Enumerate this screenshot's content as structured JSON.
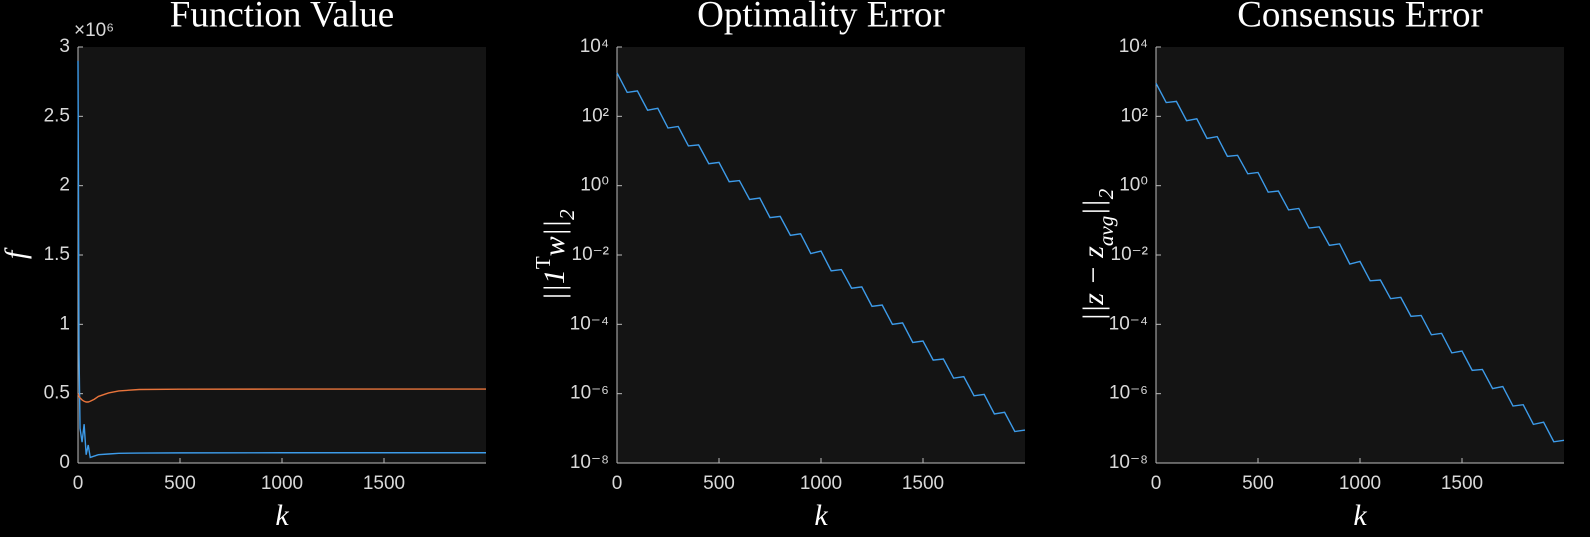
{
  "chart_data": [
    {
      "type": "line",
      "title": "Function Value",
      "xlabel": "k",
      "ylabel": [
        {
          "text": "f"
        }
      ],
      "y_offset_label": "×10⁶",
      "xlim": [
        0,
        2000
      ],
      "xticks": [
        0,
        500,
        1000,
        1500
      ],
      "ylim": [
        0,
        3000000
      ],
      "yticks": [
        {
          "value": 0,
          "label": "0"
        },
        {
          "value": 500000,
          "label": "0.5"
        },
        {
          "value": 1000000,
          "label": "1"
        },
        {
          "value": 1500000,
          "label": "1.5"
        },
        {
          "value": 2000000,
          "label": "2"
        },
        {
          "value": 2500000,
          "label": "2.5"
        },
        {
          "value": 3000000,
          "label": "3"
        }
      ],
      "log_y": false,
      "x": [
        0,
        5,
        10,
        20,
        30,
        40,
        50,
        60,
        80,
        100,
        150,
        200,
        300,
        500,
        1000,
        1500,
        2000
      ],
      "series": [
        {
          "color": "#3d9be9",
          "values": [
            2900000,
            800000,
            250000,
            150000,
            280000,
            60000,
            130000,
            40000,
            50000,
            60000,
            65000,
            70000,
            72000,
            73000,
            74000,
            74000,
            74000
          ]
        },
        {
          "color": "#e8743b",
          "values": [
            500000,
            480000,
            470000,
            455000,
            445000,
            440000,
            440000,
            445000,
            460000,
            480000,
            505000,
            520000,
            530000,
            532000,
            533000,
            533000,
            533000
          ]
        }
      ]
    },
    {
      "type": "line",
      "title": "Optimality Error",
      "xlabel": "k",
      "ylabel": [
        {
          "text": "||1"
        },
        {
          "text": "T",
          "sup": true
        },
        {
          "text": "w||"
        },
        {
          "text": "2",
          "sub": true
        }
      ],
      "xlim": [
        0,
        2000
      ],
      "xticks": [
        0,
        500,
        1000,
        1500
      ],
      "ylim": [
        1e-08,
        10000.0
      ],
      "yticks": [
        {
          "value": 1e-08,
          "label": "10⁻⁸"
        },
        {
          "value": 1e-06,
          "label": "10⁻⁶"
        },
        {
          "value": 0.0001,
          "label": "10⁻⁴"
        },
        {
          "value": 0.01,
          "label": "10⁻²"
        },
        {
          "value": 1,
          "label": "10⁰"
        },
        {
          "value": 100,
          "label": "10²"
        },
        {
          "value": 10000,
          "label": "10⁴"
        }
      ],
      "log_y": true,
      "x": [
        0,
        50,
        100,
        150,
        200,
        250,
        300,
        350,
        400,
        450,
        500,
        550,
        600,
        650,
        700,
        750,
        800,
        850,
        900,
        950,
        1000,
        1050,
        1100,
        1150,
        1200,
        1250,
        1300,
        1350,
        1400,
        1450,
        1500,
        1550,
        1600,
        1650,
        1700,
        1750,
        1800,
        1850,
        1900,
        1950,
        2000
      ],
      "series": [
        {
          "color": "#3d9be9",
          "values": [
            1800.0,
            490.0,
            540.0,
            150.0,
            170.0,
            46.0,
            51.0,
            14.0,
            15.0,
            4.3,
            4.7,
            1.3,
            1.4,
            0.4,
            0.44,
            0.12,
            0.13,
            0.037,
            0.041,
            0.011,
            0.013,
            0.0035,
            0.0038,
            0.0011,
            0.0012,
            0.00033,
            0.00036,
            0.0001,
            0.00011,
            3e-05,
            3.3e-05,
            9.3e-06,
            1e-05,
            2.8e-06,
            3.1e-06,
            8.7e-07,
            9.5e-07,
            2.6e-07,
            2.9e-07,
            8.1e-08,
            8.9e-08
          ]
        }
      ]
    },
    {
      "type": "line",
      "title": "Consensus Error",
      "xlabel": "k",
      "ylabel": [
        {
          "text": "||z − z"
        },
        {
          "text": "avg",
          "sub": true
        },
        {
          "text": "||"
        },
        {
          "text": "2",
          "sub": true
        }
      ],
      "xlim": [
        0,
        2000
      ],
      "xticks": [
        0,
        500,
        1000,
        1500
      ],
      "ylim": [
        1e-08,
        10000.0
      ],
      "yticks": [
        {
          "value": 1e-08,
          "label": "10⁻⁸"
        },
        {
          "value": 1e-06,
          "label": "10⁻⁶"
        },
        {
          "value": 0.0001,
          "label": "10⁻⁴"
        },
        {
          "value": 0.01,
          "label": "10⁻²"
        },
        {
          "value": 1,
          "label": "10⁰"
        },
        {
          "value": 100,
          "label": "10²"
        },
        {
          "value": 10000,
          "label": "10⁴"
        }
      ],
      "log_y": true,
      "x": [
        0,
        50,
        100,
        150,
        200,
        250,
        300,
        350,
        400,
        450,
        500,
        550,
        600,
        650,
        700,
        750,
        800,
        850,
        900,
        950,
        1000,
        1050,
        1100,
        1150,
        1200,
        1250,
        1300,
        1350,
        1400,
        1450,
        1500,
        1550,
        1600,
        1650,
        1700,
        1750,
        1800,
        1850,
        1900,
        1950,
        2000
      ],
      "series": [
        {
          "color": "#3d9be9",
          "values": [
            900.0,
            250.0,
            270.0,
            75.0,
            85.0,
            23.0,
            26.0,
            7.0,
            7.5,
            2.2,
            2.4,
            0.65,
            0.7,
            0.2,
            0.22,
            0.06,
            0.065,
            0.019,
            0.021,
            0.0055,
            0.0065,
            0.0018,
            0.0019,
            0.00055,
            0.0006,
            0.00017,
            0.00018,
            5e-05,
            5.5e-05,
            1.5e-05,
            1.7e-05,
            4.7e-06,
            5e-06,
            1.4e-06,
            1.6e-06,
            4.4e-07,
            4.8e-07,
            1.3e-07,
            1.5e-07,
            4.1e-08,
            4.5e-08
          ]
        }
      ]
    }
  ]
}
